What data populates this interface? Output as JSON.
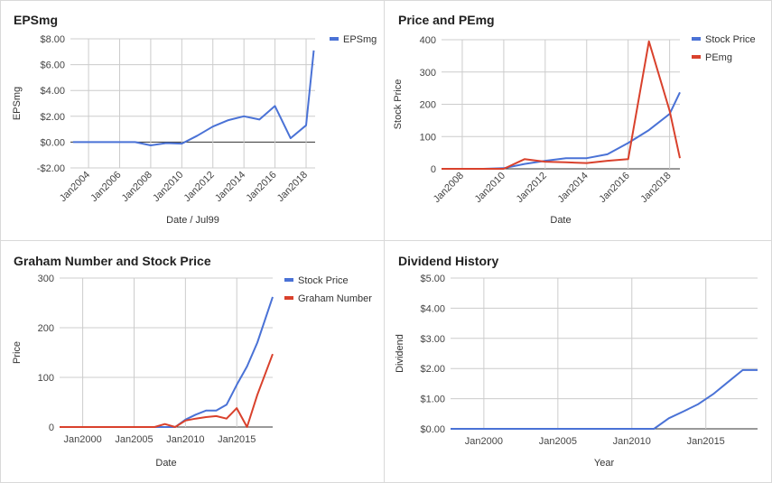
{
  "chart_data": [
    {
      "type": "line",
      "title": "EPSmg",
      "xlabel": "Date / Jul99",
      "ylabel": "EPSmg",
      "x_axis": "date",
      "xlim": [
        "2002-11-01",
        "2018-08-01"
      ],
      "ylim": [
        -2,
        8
      ],
      "y_ticks": [
        -2,
        0,
        2,
        4,
        6,
        8
      ],
      "y_tick_labels": [
        "-$2.00",
        "$0.00",
        "$2.00",
        "$4.00",
        "$6.00",
        "$8.00"
      ],
      "x_ticks": [
        "2004-01-01",
        "2006-01-01",
        "2008-01-01",
        "2010-01-01",
        "2012-01-01",
        "2014-01-01",
        "2016-01-01",
        "2018-01-01"
      ],
      "x_tick_labels": [
        "Jan2004",
        "Jan2006",
        "Jan2008",
        "Jan2010",
        "Jan2012",
        "Jan2014",
        "Jan2016",
        "Jan2018"
      ],
      "grid": true,
      "legend": "right",
      "series": [
        {
          "name": "EPSmg",
          "color": "#4a72d6",
          "x": [
            "2002-12-31",
            "2003-12-31",
            "2004-12-31",
            "2005-12-31",
            "2006-12-31",
            "2007-12-31",
            "2008-12-31",
            "2009-12-31",
            "2010-12-31",
            "2011-12-31",
            "2012-12-31",
            "2013-12-31",
            "2014-12-31",
            "2015-12-31",
            "2016-12-31",
            "2017-12-31",
            "2018-06-30"
          ],
          "y": [
            0.0,
            0.0,
            0.0,
            0.0,
            0.0,
            -0.25,
            -0.08,
            -0.12,
            0.5,
            1.2,
            1.7,
            2.0,
            1.75,
            2.8,
            0.3,
            1.3,
            7.1
          ]
        }
      ]
    },
    {
      "type": "line",
      "title": "Price and PEmg",
      "xlabel": "Date",
      "ylabel": "Stock Price",
      "x_axis": "date",
      "xlim": [
        "2007-01-01",
        "2018-07-01"
      ],
      "ylim": [
        0,
        400
      ],
      "y_ticks": [
        0,
        100,
        200,
        300,
        400
      ],
      "y_tick_labels": [
        "0",
        "100",
        "200",
        "300",
        "400"
      ],
      "x_ticks": [
        "2008-01-01",
        "2010-01-01",
        "2012-01-01",
        "2014-01-01",
        "2016-01-01",
        "2018-01-01"
      ],
      "x_tick_labels": [
        "Jan2008",
        "Jan2010",
        "Jan2012",
        "Jan2014",
        "Jan2016",
        "Jan2018"
      ],
      "grid": true,
      "legend": "right",
      "series": [
        {
          "name": "Stock Price",
          "color": "#4a72d6",
          "x": [
            "2007-01-01",
            "2008-01-01",
            "2009-01-01",
            "2010-01-01",
            "2011-01-01",
            "2012-01-01",
            "2013-01-01",
            "2014-01-01",
            "2015-01-01",
            "2016-01-01",
            "2017-01-01",
            "2018-01-01",
            "2018-07-01"
          ],
          "y": [
            0,
            0,
            0,
            2,
            15,
            25,
            33,
            33,
            45,
            80,
            120,
            170,
            237
          ]
        },
        {
          "name": "PEmg",
          "color": "#d9412c",
          "x": [
            "2007-01-01",
            "2008-01-01",
            "2009-01-01",
            "2010-01-01",
            "2011-01-01",
            "2012-01-01",
            "2013-01-01",
            "2014-01-01",
            "2015-01-01",
            "2016-01-01",
            "2017-01-01",
            "2018-01-01",
            "2018-07-01"
          ],
          "y": [
            0,
            0,
            0,
            0,
            30,
            22,
            20,
            18,
            25,
            30,
            395,
            180,
            33
          ]
        }
      ]
    },
    {
      "type": "line",
      "title": "Graham Number and Stock Price",
      "xlabel": "Date",
      "ylabel": "Price",
      "x_axis": "date",
      "xlim": [
        "1997-10-01",
        "2018-07-01"
      ],
      "ylim": [
        0,
        300
      ],
      "y_ticks": [
        0,
        100,
        200,
        300
      ],
      "y_tick_labels": [
        "0",
        "100",
        "200",
        "300"
      ],
      "x_ticks": [
        "2000-01-01",
        "2005-01-01",
        "2010-01-01",
        "2015-01-01"
      ],
      "x_tick_labels": [
        "Jan2000",
        "Jan2005",
        "Jan2010",
        "Jan2015"
      ],
      "grid": true,
      "legend": "right",
      "series": [
        {
          "name": "Stock Price",
          "color": "#4a72d6",
          "x": [
            "1997-10-01",
            "2006-01-01",
            "2007-01-01",
            "2008-01-01",
            "2009-01-01",
            "2010-01-01",
            "2011-01-01",
            "2012-01-01",
            "2013-01-01",
            "2014-01-01",
            "2015-01-01",
            "2016-01-01",
            "2017-01-01",
            "2018-07-01"
          ],
          "y": [
            0,
            0,
            0,
            0,
            0,
            15,
            25,
            33,
            33,
            45,
            85,
            122,
            170,
            262
          ]
        },
        {
          "name": "Graham Number",
          "color": "#d9412c",
          "x": [
            "1997-10-01",
            "2006-01-01",
            "2007-01-01",
            "2008-01-01",
            "2009-01-01",
            "2010-01-01",
            "2011-01-01",
            "2012-01-01",
            "2013-01-01",
            "2014-01-01",
            "2015-01-01",
            "2016-01-01",
            "2017-01-01",
            "2018-07-01"
          ],
          "y": [
            0,
            0,
            0,
            6,
            0,
            13,
            17,
            20,
            22,
            17,
            38,
            0,
            65,
            147
          ]
        }
      ]
    },
    {
      "type": "line",
      "title": "Dividend History",
      "xlabel": "Year",
      "ylabel": "Dividend",
      "x_axis": "date",
      "xlim": [
        "1997-10-01",
        "2018-07-01"
      ],
      "ylim": [
        0,
        5
      ],
      "y_ticks": [
        0,
        1,
        2,
        3,
        4,
        5
      ],
      "y_tick_labels": [
        "$0.00",
        "$1.00",
        "$2.00",
        "$3.00",
        "$4.00",
        "$5.00"
      ],
      "x_ticks": [
        "2000-01-01",
        "2005-01-01",
        "2010-01-01",
        "2015-01-01"
      ],
      "x_tick_labels": [
        "Jan2000",
        "Jan2005",
        "Jan2010",
        "Jan2015"
      ],
      "grid": true,
      "legend": "none",
      "series": [
        {
          "color": "#4a72d6",
          "x": [
            "1997-10-01",
            "2011-07-01",
            "2012-07-01",
            "2013-07-01",
            "2014-07-01",
            "2015-07-01",
            "2016-07-01",
            "2017-07-01",
            "2018-07-01"
          ],
          "y": [
            0,
            0,
            0.35,
            0.58,
            0.82,
            1.15,
            1.55,
            1.95,
            1.95
          ]
        }
      ]
    }
  ]
}
